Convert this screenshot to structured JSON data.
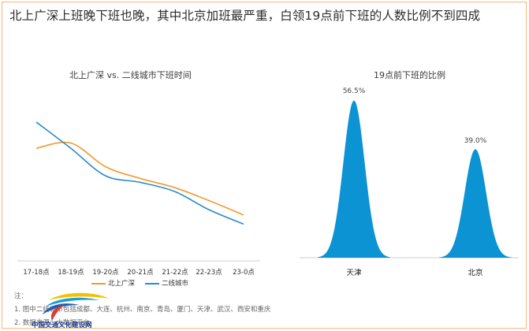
{
  "headline": "北上广深上班晚下班也晚，其中北京加班最严重，白领19点前下班的人数比例不到四成",
  "chart_data": [
    {
      "type": "line",
      "title": "北上广深 vs. 二线城市下班时间",
      "categories": [
        "17-18点",
        "18-19点",
        "19-20点",
        "20-21点",
        "21-22点",
        "22-23点",
        "23-0点"
      ],
      "series": [
        {
          "name": "北上广深",
          "color": "#f29a2e",
          "values": [
            0.71,
            0.75,
            0.57,
            0.48,
            0.41,
            0.31,
            0.2
          ]
        },
        {
          "name": "二线城市",
          "color": "#2a8bc8",
          "values": [
            0.91,
            0.71,
            0.5,
            0.45,
            0.38,
            0.24,
            0.13
          ]
        }
      ],
      "grid": false,
      "legend": "bottom"
    },
    {
      "type": "area",
      "title": "19点前下班的比例",
      "categories": [
        "天津",
        "北京"
      ],
      "values": [
        56.5,
        39.0
      ],
      "value_labels": [
        "56.5%",
        "39.0%"
      ],
      "color": "#0b93d3"
    }
  ],
  "notes": {
    "label": "注：",
    "lines": [
      "1. 图中二线城市包括成都、大连、杭州、南京、青岛、厦门、天津、武汉、西安和重庆",
      "2. 数据来源：大数据平台"
    ]
  },
  "logo": {
    "text": "中国交通文化建设网"
  }
}
